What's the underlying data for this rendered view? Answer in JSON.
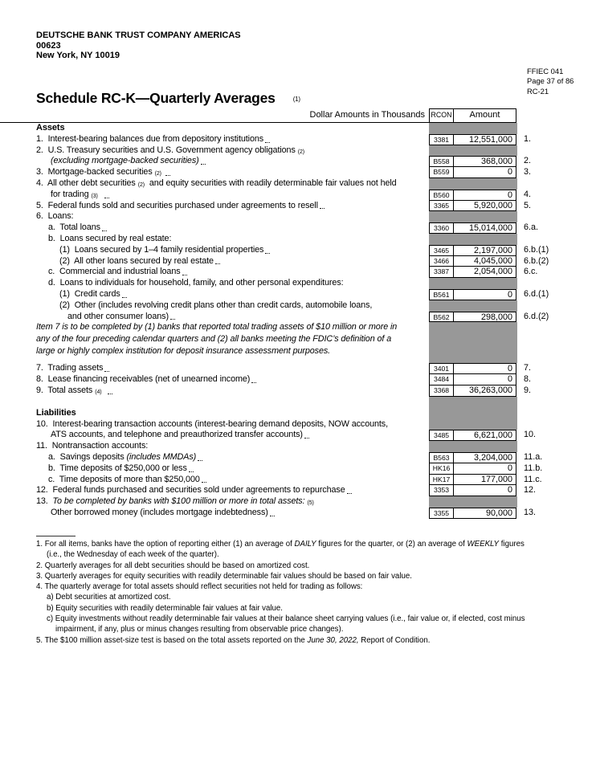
{
  "page": {
    "bank_name": "DEUTSCHE BANK TRUST COMPANY AMERICAS",
    "bank_id": "00623",
    "bank_city": "New York, NY 10019",
    "form_code": "FFIEC 041",
    "page_info": "Page 37 of 86",
    "schedule_code": "RC-21",
    "title": "Schedule RC-K—Quarterly Averages",
    "title_note": "(1)"
  },
  "colors": {
    "gray_fill": "#989898",
    "border": "#000000"
  },
  "table": {
    "header": {
      "dollar_label": "Dollar Amounts in Thousands",
      "rcon": "RCON",
      "amount": "Amount"
    },
    "rows": [
      {
        "segs": [
          {
            "t": "Assets",
            "b": 1
          }
        ],
        "gray": 1
      },
      {
        "segs": [
          {
            "t": "1.  Interest-bearing balances due from depository institutions"
          }
        ],
        "dots": 1,
        "code": "3381",
        "amount": "12,551,000",
        "num": "1."
      },
      {
        "segs": [
          {
            "t": "2.  U.S. Treasury securities and U.S. Government agency obligations"
          },
          {
            "t": "(2)",
            "sup": 1
          }
        ],
        "gray": 1
      },
      {
        "ind": 18,
        "segs": [
          {
            "t": "(excluding mortgage-backed securities)",
            "i": 1
          }
        ],
        "dots": 1,
        "code": "B558",
        "amount": "368,000",
        "num": "2."
      },
      {
        "segs": [
          {
            "t": "3.  Mortgage-backed securities"
          },
          {
            "t": "(2)",
            "sup": 1
          }
        ],
        "dots": 1,
        "code": "B559",
        "amount": "0",
        "num": "3."
      },
      {
        "segs": [
          {
            "t": "4.  All other debt securities"
          },
          {
            "t": "(2)",
            "sup": 1
          },
          {
            "t": " and equity securities with readily determinable fair values not held"
          }
        ],
        "gray": 1
      },
      {
        "ind": 18,
        "segs": [
          {
            "t": "for trading"
          },
          {
            "t": "(3)",
            "sup": 1
          },
          {
            "t": " "
          }
        ],
        "dots": 1,
        "code": "B560",
        "amount": "0",
        "num": "4."
      },
      {
        "segs": [
          {
            "t": "5.  Federal funds sold and securities purchased under agreements to resell"
          }
        ],
        "dots": 1,
        "code": "3365",
        "amount": "5,920,000",
        "num": "5."
      },
      {
        "segs": [
          {
            "t": "6.  Loans:"
          }
        ],
        "gray": 1
      },
      {
        "ind": 15,
        "segs": [
          {
            "t": "a.  Total loans"
          }
        ],
        "dots": 1,
        "code": "3360",
        "amount": "15,014,000",
        "num": "6.a."
      },
      {
        "ind": 15,
        "segs": [
          {
            "t": "b.  Loans secured by real estate:"
          }
        ],
        "gray": 1
      },
      {
        "ind": 29,
        "segs": [
          {
            "t": "(1)  Loans secured by 1–4 family residential properties"
          }
        ],
        "dots": 1,
        "code": "3465",
        "amount": "2,197,000",
        "num": "6.b.(1)"
      },
      {
        "ind": 29,
        "segs": [
          {
            "t": "(2)  All other loans secured by real estate"
          }
        ],
        "dots": 1,
        "code": "3466",
        "amount": "4,045,000",
        "num": "6.b.(2)"
      },
      {
        "ind": 15,
        "segs": [
          {
            "t": "c.  Commercial and industrial loans"
          }
        ],
        "dots": 1,
        "code": "3387",
        "amount": "2,054,000",
        "num": "6.c."
      },
      {
        "ind": 15,
        "segs": [
          {
            "t": "d.  Loans to individuals for household, family, and other personal expenditures:"
          }
        ],
        "gray": 1
      },
      {
        "ind": 29,
        "segs": [
          {
            "t": "(1)  Credit cards"
          }
        ],
        "dots": 1,
        "code": "B561",
        "amount": "0",
        "num": "6.d.(1)"
      },
      {
        "ind": 29,
        "segs": [
          {
            "t": "(2)  Other (includes revolving credit plans other than credit cards, automobile loans,"
          }
        ],
        "gray": 1
      },
      {
        "ind": 39,
        "segs": [
          {
            "t": "and other consumer loans)"
          }
        ],
        "dots": 1,
        "code": "B562",
        "amount": "298,000",
        "num": "6.d.(2)"
      },
      {
        "h": 15,
        "segs": [
          {
            "t": "Item 7 is to be completed by (1) banks that reported total trading assets of $10 million or more in",
            "i": 1
          }
        ],
        "gray": 1
      },
      {
        "h": 15,
        "segs": [
          {
            "t": "any of the four preceding calendar quarters and (2) all banks meeting the FDIC’s definition of a",
            "i": 1
          }
        ],
        "gray": 1
      },
      {
        "h": 15,
        "segs": [
          {
            "t": "large or highly complex institution for deposit insurance assessment purposes.",
            "i": 1
          }
        ],
        "gray": 1
      },
      {
        "h": 6,
        "segs": [],
        "gray": 1
      },
      {
        "segs": [
          {
            "t": "7.  Trading assets"
          }
        ],
        "dots": 1,
        "code": "3401",
        "amount": "0",
        "num": "7."
      },
      {
        "segs": [
          {
            "t": "8.  Lease financing receivables (net of unearned income)"
          }
        ],
        "dots": 1,
        "code": "3484",
        "amount": "0",
        "num": "8."
      },
      {
        "segs": [
          {
            "t": "9.  Total assets"
          },
          {
            "t": "(4)",
            "sup": 1
          },
          {
            "t": " "
          }
        ],
        "dots": 1,
        "code": "3368",
        "amount": "36,263,000",
        "num": "9."
      },
      {
        "h": 14,
        "segs": [],
        "gray": 1
      },
      {
        "segs": [
          {
            "t": "Liabilities",
            "b": 1
          }
        ],
        "gray": 1
      },
      {
        "segs": [
          {
            "t": "10.  Interest-bearing transaction accounts (interest-bearing demand deposits, NOW accounts,"
          }
        ],
        "gray": 1
      },
      {
        "ind": 18,
        "segs": [
          {
            "t": "ATS accounts, and telephone and preauthorized transfer accounts)"
          }
        ],
        "dots": 1,
        "code": "3485",
        "amount": "6,621,000",
        "num": "10."
      },
      {
        "segs": [
          {
            "t": "11.  Nontransaction accounts:"
          }
        ],
        "gray": 1
      },
      {
        "ind": 15,
        "segs": [
          {
            "t": "a.  Savings deposits "
          },
          {
            "t": "(includes MMDAs)",
            "i": 1
          }
        ],
        "dots": 1,
        "code": "B563",
        "amount": "3,204,000",
        "num": "11.a."
      },
      {
        "ind": 15,
        "segs": [
          {
            "t": "b.  Time deposits of $250,000 or less"
          }
        ],
        "dots": 1,
        "code": "HK16",
        "amount": "0",
        "num": "11.b."
      },
      {
        "ind": 15,
        "segs": [
          {
            "t": "c.  Time deposits of more than $250,000"
          }
        ],
        "dots": 1,
        "code": "HK17",
        "amount": "177,000",
        "num": "11.c."
      },
      {
        "segs": [
          {
            "t": "12.  Federal funds purchased and securities sold under agreements to repurchase"
          }
        ],
        "dots": 1,
        "code": "3353",
        "amount": "0",
        "num": "12."
      },
      {
        "segs": [
          {
            "t": "13.  "
          },
          {
            "t": "To be completed by banks with $100 million or more in total assets:",
            "i": 1
          },
          {
            "t": "(5)",
            "sup": 1
          }
        ],
        "gray": 1
      },
      {
        "ind": 18,
        "segs": [
          {
            "t": "Other borrowed money (includes mortgage indebtedness)"
          }
        ],
        "dots": 1,
        "code": "3355",
        "amount": "90,000",
        "num": "13."
      }
    ]
  },
  "footnotes": [
    {
      "ind": 0,
      "segs": [
        {
          "t": "1. For all items, banks have the option of reporting either (1) an average of "
        },
        {
          "t": "DAILY",
          "i": 1
        },
        {
          "t": " figures for the quarter, or (2) an average of "
        },
        {
          "t": "WEEKLY",
          "i": 1
        },
        {
          "t": " figures"
        }
      ]
    },
    {
      "ind": 13,
      "segs": [
        {
          "t": "(i.e., the Wednesday of each week of the quarter)."
        }
      ]
    },
    {
      "ind": 0,
      "segs": [
        {
          "t": "2. Quarterly averages for all debt securities should be based on amortized cost."
        }
      ]
    },
    {
      "ind": 0,
      "segs": [
        {
          "t": "3. Quarterly averages for equity securities with readily determinable fair values should be based on fair value."
        }
      ]
    },
    {
      "ind": 0,
      "segs": [
        {
          "t": "4. The quarterly average for total assets should reflect securities not held for trading as follows:"
        }
      ]
    },
    {
      "ind": 13,
      "segs": [
        {
          "t": "a) Debt securities at amortized cost."
        }
      ]
    },
    {
      "ind": 13,
      "segs": [
        {
          "t": "b) Equity securities with readily determinable fair values at fair value."
        }
      ]
    },
    {
      "ind": 13,
      "segs": [
        {
          "t": "c) Equity investments without readily determinable fair values at their balance sheet carrying values (i.e., fair value or, if elected, cost minus"
        }
      ]
    },
    {
      "ind": 24,
      "segs": [
        {
          "t": "impairment, if any, plus or minus changes resulting from observable price changes)."
        }
      ]
    },
    {
      "ind": 0,
      "segs": [
        {
          "t": "5. The $100 million asset-size test is based on the total assets reported on the "
        },
        {
          "t": "June 30, 2022,",
          "i": 1
        },
        {
          "t": " Report of Condition."
        }
      ]
    }
  ]
}
